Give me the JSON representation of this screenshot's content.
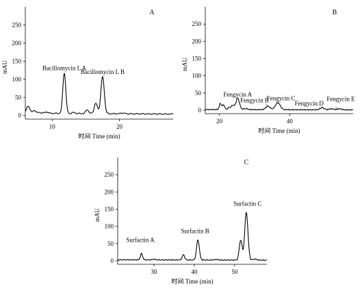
{
  "chart_data": [
    {
      "type": "line",
      "panel": "A",
      "ylabel": "mAU",
      "xlabel": "时间 Time (min)",
      "xlim": [
        6,
        28
      ],
      "ylim": [
        -10,
        300
      ],
      "xticks": [
        10,
        20
      ],
      "yticks": [
        0,
        50,
        100,
        150,
        200,
        250
      ],
      "trace": {
        "baseline": 5,
        "base_points": [
          [
            6,
            12
          ],
          [
            6.3,
            20
          ],
          [
            6.6,
            16
          ],
          [
            7,
            10
          ],
          [
            8,
            8
          ],
          [
            10,
            6
          ],
          [
            28,
            4
          ]
        ],
        "peaks": [
          [
            6.5,
            8,
            0.15
          ],
          [
            7.4,
            5,
            0.15
          ],
          [
            9.2,
            3,
            0.2
          ],
          [
            11.8,
            112,
            0.22
          ],
          [
            13.2,
            3,
            0.2
          ],
          [
            15.2,
            11,
            0.2
          ],
          [
            16.5,
            28,
            0.25
          ],
          [
            17.5,
            102,
            0.25
          ],
          [
            20.5,
            2,
            0.3
          ]
        ]
      },
      "annotations": [
        {
          "text": "Bacillomycin L A",
          "x": 11.8,
          "y": 125
        },
        {
          "text": "Bacillomycin L B",
          "x": 17.5,
          "y": 115
        }
      ]
    },
    {
      "type": "line",
      "panel": "B",
      "ylabel": "mAU",
      "xlabel": "时间 Time (min)",
      "xlim": [
        16,
        58
      ],
      "ylim": [
        -10,
        300
      ],
      "xticks": [
        20,
        40
      ],
      "yticks": [
        0,
        50,
        100,
        150,
        200,
        250
      ],
      "trace": {
        "baseline": 2,
        "base_points": [
          [
            16,
            2
          ],
          [
            58,
            1
          ]
        ],
        "peaks": [
          [
            20.3,
            18,
            0.3
          ],
          [
            21.2,
            14,
            0.3
          ],
          [
            22.8,
            6,
            0.4
          ],
          [
            23.8,
            12,
            0.4
          ],
          [
            25.2,
            33,
            0.5
          ],
          [
            27.5,
            3,
            0.6
          ],
          [
            33.8,
            10,
            0.6
          ],
          [
            36.6,
            20,
            0.7
          ],
          [
            49.2,
            6,
            0.6
          ],
          [
            51.8,
            3,
            0.6
          ],
          [
            54.2,
            3,
            0.6
          ]
        ]
      },
      "annotations": [
        {
          "text": "Fengycin A",
          "x": 25.2,
          "y": 40,
          "pointer": [
            [
              25.2,
              36
            ],
            [
              25.2,
              36
            ]
          ]
        },
        {
          "text": "Fengycin B",
          "x": 30,
          "y": 23,
          "pointer": [
            [
              33.2,
              16
            ],
            [
              33.8,
              12
            ]
          ]
        },
        {
          "text": "Fengycin C",
          "x": 37.5,
          "y": 29,
          "pointer": [
            [
              36.8,
              25
            ],
            [
              36.6,
              22
            ]
          ]
        },
        {
          "text": "Fengycin D",
          "x": 45.5,
          "y": 14,
          "pointer": [
            [
              49,
              11
            ],
            [
              49.2,
              8
            ]
          ]
        },
        {
          "text": "Fengycin E",
          "x": 54.5,
          "y": 27,
          "pointer": [
            [
              53,
              7
            ],
            [
              53.6,
              5
            ]
          ]
        }
      ]
    },
    {
      "type": "line",
      "panel": "C",
      "ylabel": "mAU",
      "xlabel": "时间 Time (min)",
      "xlim": [
        21,
        58
      ],
      "ylim": [
        -10,
        300
      ],
      "xticks": [
        30,
        40,
        50
      ],
      "yticks": [
        0,
        50,
        100,
        150,
        200,
        250
      ],
      "trace": {
        "baseline": 3,
        "base_points": [
          [
            21,
            3
          ],
          [
            58,
            2
          ]
        ],
        "peaks": [
          [
            26.9,
            18,
            0.28
          ],
          [
            30,
            2,
            0.4
          ],
          [
            37.3,
            15,
            0.3
          ],
          [
            40.9,
            58,
            0.35
          ],
          [
            45.5,
            2,
            0.4
          ],
          [
            51.5,
            58,
            0.35
          ],
          [
            52.9,
            138,
            0.4
          ],
          [
            55,
            3,
            0.5
          ]
        ]
      },
      "annotations": [
        {
          "text": "Surfactin A",
          "x": 26.6,
          "y": 55
        },
        {
          "text": "Surfactin B",
          "x": 40.2,
          "y": 80
        },
        {
          "text": "Surfactin C",
          "x": 53.2,
          "y": 160
        }
      ]
    }
  ]
}
